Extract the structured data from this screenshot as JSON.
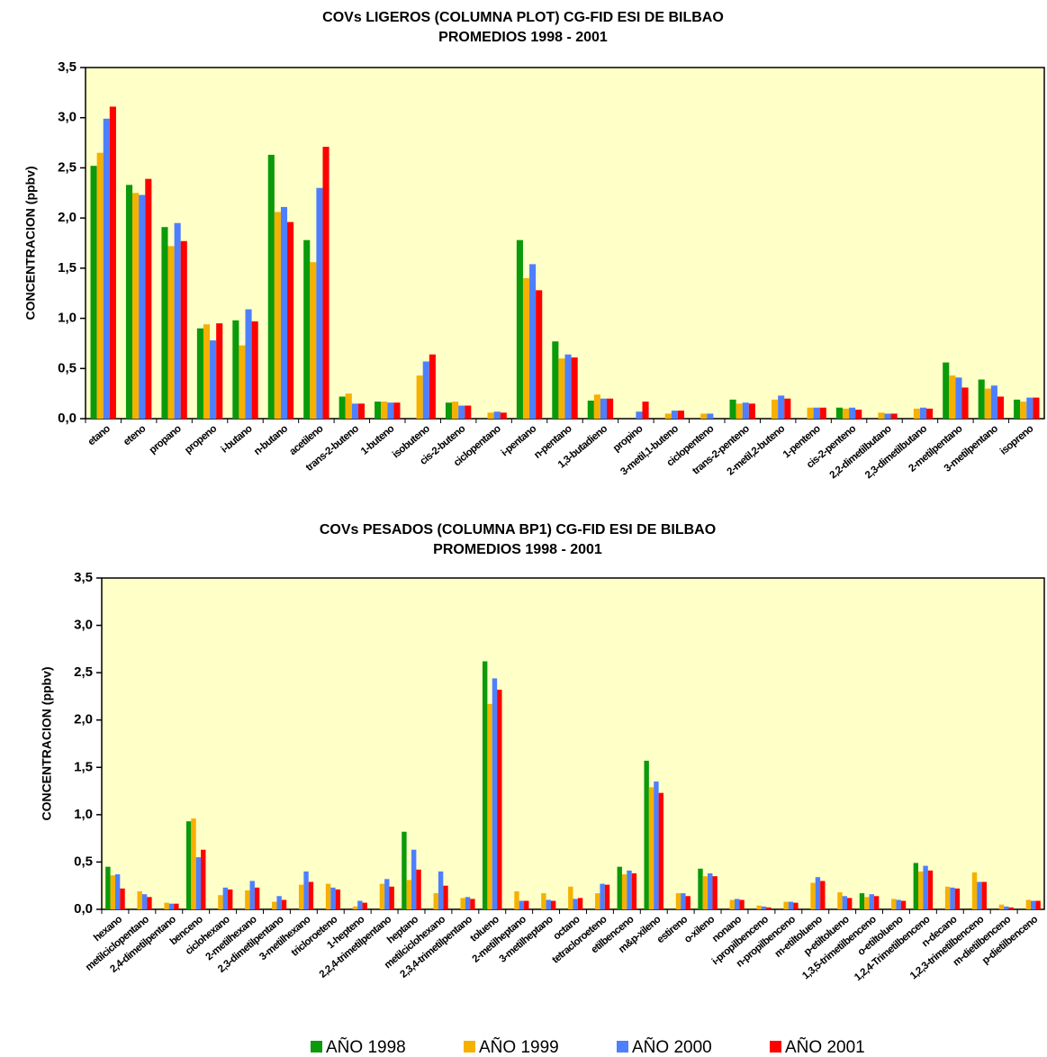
{
  "chart_data": [
    {
      "type": "bar",
      "title": "COVs LIGEROS (COLUMNA PLOT) CG-FID ESI DE BILBAO",
      "subtitle": "PROMEDIOS 1998 - 2001",
      "y_label": "CONCENTRACION (ppbv)",
      "categories": [
        "etano",
        "eteno",
        "propano",
        "propeno",
        "i-butano",
        "n-butano",
        "acetileno",
        "trans-2-buteno",
        "1-buteno",
        "isobuteno",
        "cis-2-buteno",
        "ciclopentano",
        "i-pentano",
        "n-pentano",
        "1,3-butadieno",
        "propino",
        "3-metil,1-buteno",
        "ciclopenteno",
        "trans-2-penteno",
        "2-metil,2-buteno",
        "1-penteno",
        "cis-2-penteno",
        "2,2-dimetilbutano",
        "2,3-dimetilbutano",
        "2-metilpentano",
        "3-metilpentano",
        "isopreno"
      ],
      "series": [
        {
          "name": "AÑO 1998",
          "color": "#0a9a0a",
          "values": [
            2.52,
            2.33,
            1.91,
            0.9,
            0.98,
            2.63,
            1.78,
            0.22,
            0.17,
            null,
            0.16,
            null,
            1.78,
            0.77,
            0.18,
            null,
            null,
            null,
            0.19,
            null,
            null,
            0.11,
            null,
            null,
            0.56,
            0.39,
            0.19
          ]
        },
        {
          "name": "AÑO 1999",
          "color": "#f5b000",
          "values": [
            2.65,
            2.25,
            1.72,
            0.94,
            0.73,
            2.06,
            1.56,
            0.25,
            0.17,
            0.43,
            0.17,
            0.06,
            1.4,
            0.6,
            0.24,
            null,
            0.05,
            0.05,
            0.15,
            0.19,
            0.11,
            0.1,
            0.06,
            0.1,
            0.43,
            0.3,
            0.17
          ]
        },
        {
          "name": "AÑO 2000",
          "color": "#4d7fff",
          "values": [
            2.99,
            2.23,
            1.95,
            0.78,
            1.09,
            2.11,
            2.3,
            0.15,
            0.16,
            0.57,
            0.13,
            0.07,
            1.54,
            0.64,
            0.2,
            0.07,
            0.08,
            0.05,
            0.16,
            0.23,
            0.11,
            0.11,
            0.05,
            0.11,
            0.41,
            0.33,
            0.21
          ]
        },
        {
          "name": "AÑO 2001",
          "color": "#ff0000",
          "values": [
            3.11,
            2.39,
            1.77,
            0.95,
            0.97,
            1.96,
            2.71,
            0.15,
            0.16,
            0.64,
            0.13,
            0.06,
            1.28,
            0.61,
            0.2,
            0.17,
            0.08,
            null,
            0.15,
            0.2,
            0.11,
            0.09,
            0.05,
            0.1,
            0.31,
            0.22,
            0.21
          ]
        }
      ],
      "ylim": [
        0,
        3.5
      ],
      "yticks": [
        {
          "value": 0,
          "label": "0,0"
        },
        {
          "value": 0.5,
          "label": "0,5"
        },
        {
          "value": 1,
          "label": "1,0"
        },
        {
          "value": 1.5,
          "label": "1,5"
        },
        {
          "value": 2,
          "label": "2,0"
        },
        {
          "value": 2.5,
          "label": "2,5"
        },
        {
          "value": 3,
          "label": "3,0"
        },
        {
          "value": 3.5,
          "label": "3,5"
        }
      ],
      "grid": false,
      "legend": false
    },
    {
      "type": "bar",
      "title": "COVs PESADOS (COLUMNA BP1) CG-FID ESI DE BILBAO",
      "subtitle": "PROMEDIOS 1998 - 2001",
      "y_label": "CONCENTRACION (ppbv)",
      "categories": [
        "hexano",
        "metilciclopentano",
        "2,4-dimetilpentano",
        "benceno",
        "ciclohexano",
        "2-metilhexano",
        "2,3-dimetilpentano",
        "3-metilhexano",
        "tricloroeteno",
        "1-hepteno",
        "2,2,4-trimetilpentano",
        "heptano",
        "metilciclohexano",
        "2,3,4-trimetilpentano",
        "tolueno",
        "2-metilheptano",
        "3-metilheptano",
        "octano",
        "tetracloroeteno",
        "etilbenceno",
        "m&p-xileno",
        "estireno",
        "o-xileno",
        "nonano",
        "i-propilbenceno",
        "n-propilbenceno",
        "m-etiltolueno",
        "p-etiltolueno",
        "1,3,5-trimetilbenceno",
        "o-etiltolueno",
        "1,2,4-Trimetilbenceno",
        "n-decano",
        "1,2,3-trimetilbenceno",
        "m-dietilbenceno",
        "p-dietilbenceno"
      ],
      "series": [
        {
          "name": "AÑO 1998",
          "color": "#0a9a0a",
          "values": [
            0.45,
            null,
            null,
            0.93,
            null,
            null,
            null,
            null,
            null,
            null,
            null,
            0.82,
            null,
            null,
            2.62,
            null,
            null,
            null,
            null,
            0.45,
            1.57,
            null,
            0.43,
            null,
            null,
            null,
            null,
            null,
            0.17,
            null,
            0.49,
            null,
            null,
            null,
            null
          ]
        },
        {
          "name": "AÑO 1999",
          "color": "#f5b000",
          "values": [
            0.36,
            0.19,
            0.07,
            0.96,
            0.15,
            0.2,
            0.08,
            0.26,
            0.27,
            0.03,
            0.27,
            0.31,
            0.17,
            0.12,
            2.17,
            0.19,
            0.17,
            0.24,
            0.17,
            0.37,
            1.29,
            0.17,
            0.35,
            0.1,
            0.04,
            0.08,
            0.28,
            0.18,
            0.13,
            0.11,
            0.4,
            0.24,
            0.39,
            0.05,
            0.1
          ]
        },
        {
          "name": "AÑO 2000",
          "color": "#4d7fff",
          "values": [
            0.37,
            0.16,
            0.06,
            0.55,
            0.23,
            0.3,
            0.14,
            0.4,
            0.23,
            0.09,
            0.32,
            0.63,
            0.4,
            0.13,
            2.44,
            0.09,
            0.1,
            0.11,
            0.27,
            0.41,
            1.35,
            0.17,
            0.38,
            0.11,
            0.03,
            0.08,
            0.34,
            0.14,
            0.16,
            0.1,
            0.46,
            0.23,
            0.29,
            0.03,
            0.09
          ]
        },
        {
          "name": "AÑO 2001",
          "color": "#ff0000",
          "values": [
            0.22,
            0.13,
            0.06,
            0.63,
            0.21,
            0.23,
            0.1,
            0.29,
            0.21,
            0.07,
            0.24,
            0.42,
            0.25,
            0.11,
            2.32,
            0.09,
            0.09,
            0.12,
            0.26,
            0.38,
            1.23,
            0.14,
            0.35,
            0.1,
            0.02,
            0.07,
            0.3,
            0.12,
            0.14,
            0.09,
            0.41,
            0.22,
            0.29,
            0.02,
            0.09
          ]
        }
      ],
      "ylim": [
        0,
        3.5
      ],
      "yticks": [
        {
          "value": 0,
          "label": "0,0"
        },
        {
          "value": 0.5,
          "label": "0,5"
        },
        {
          "value": 1,
          "label": "1,0"
        },
        {
          "value": 1.5,
          "label": "1,5"
        },
        {
          "value": 2,
          "label": "2,0"
        },
        {
          "value": 2.5,
          "label": "2,5"
        },
        {
          "value": 3,
          "label": "3,0"
        },
        {
          "value": 3.5,
          "label": "3,5"
        }
      ],
      "grid": false,
      "legend": "bottom"
    }
  ]
}
